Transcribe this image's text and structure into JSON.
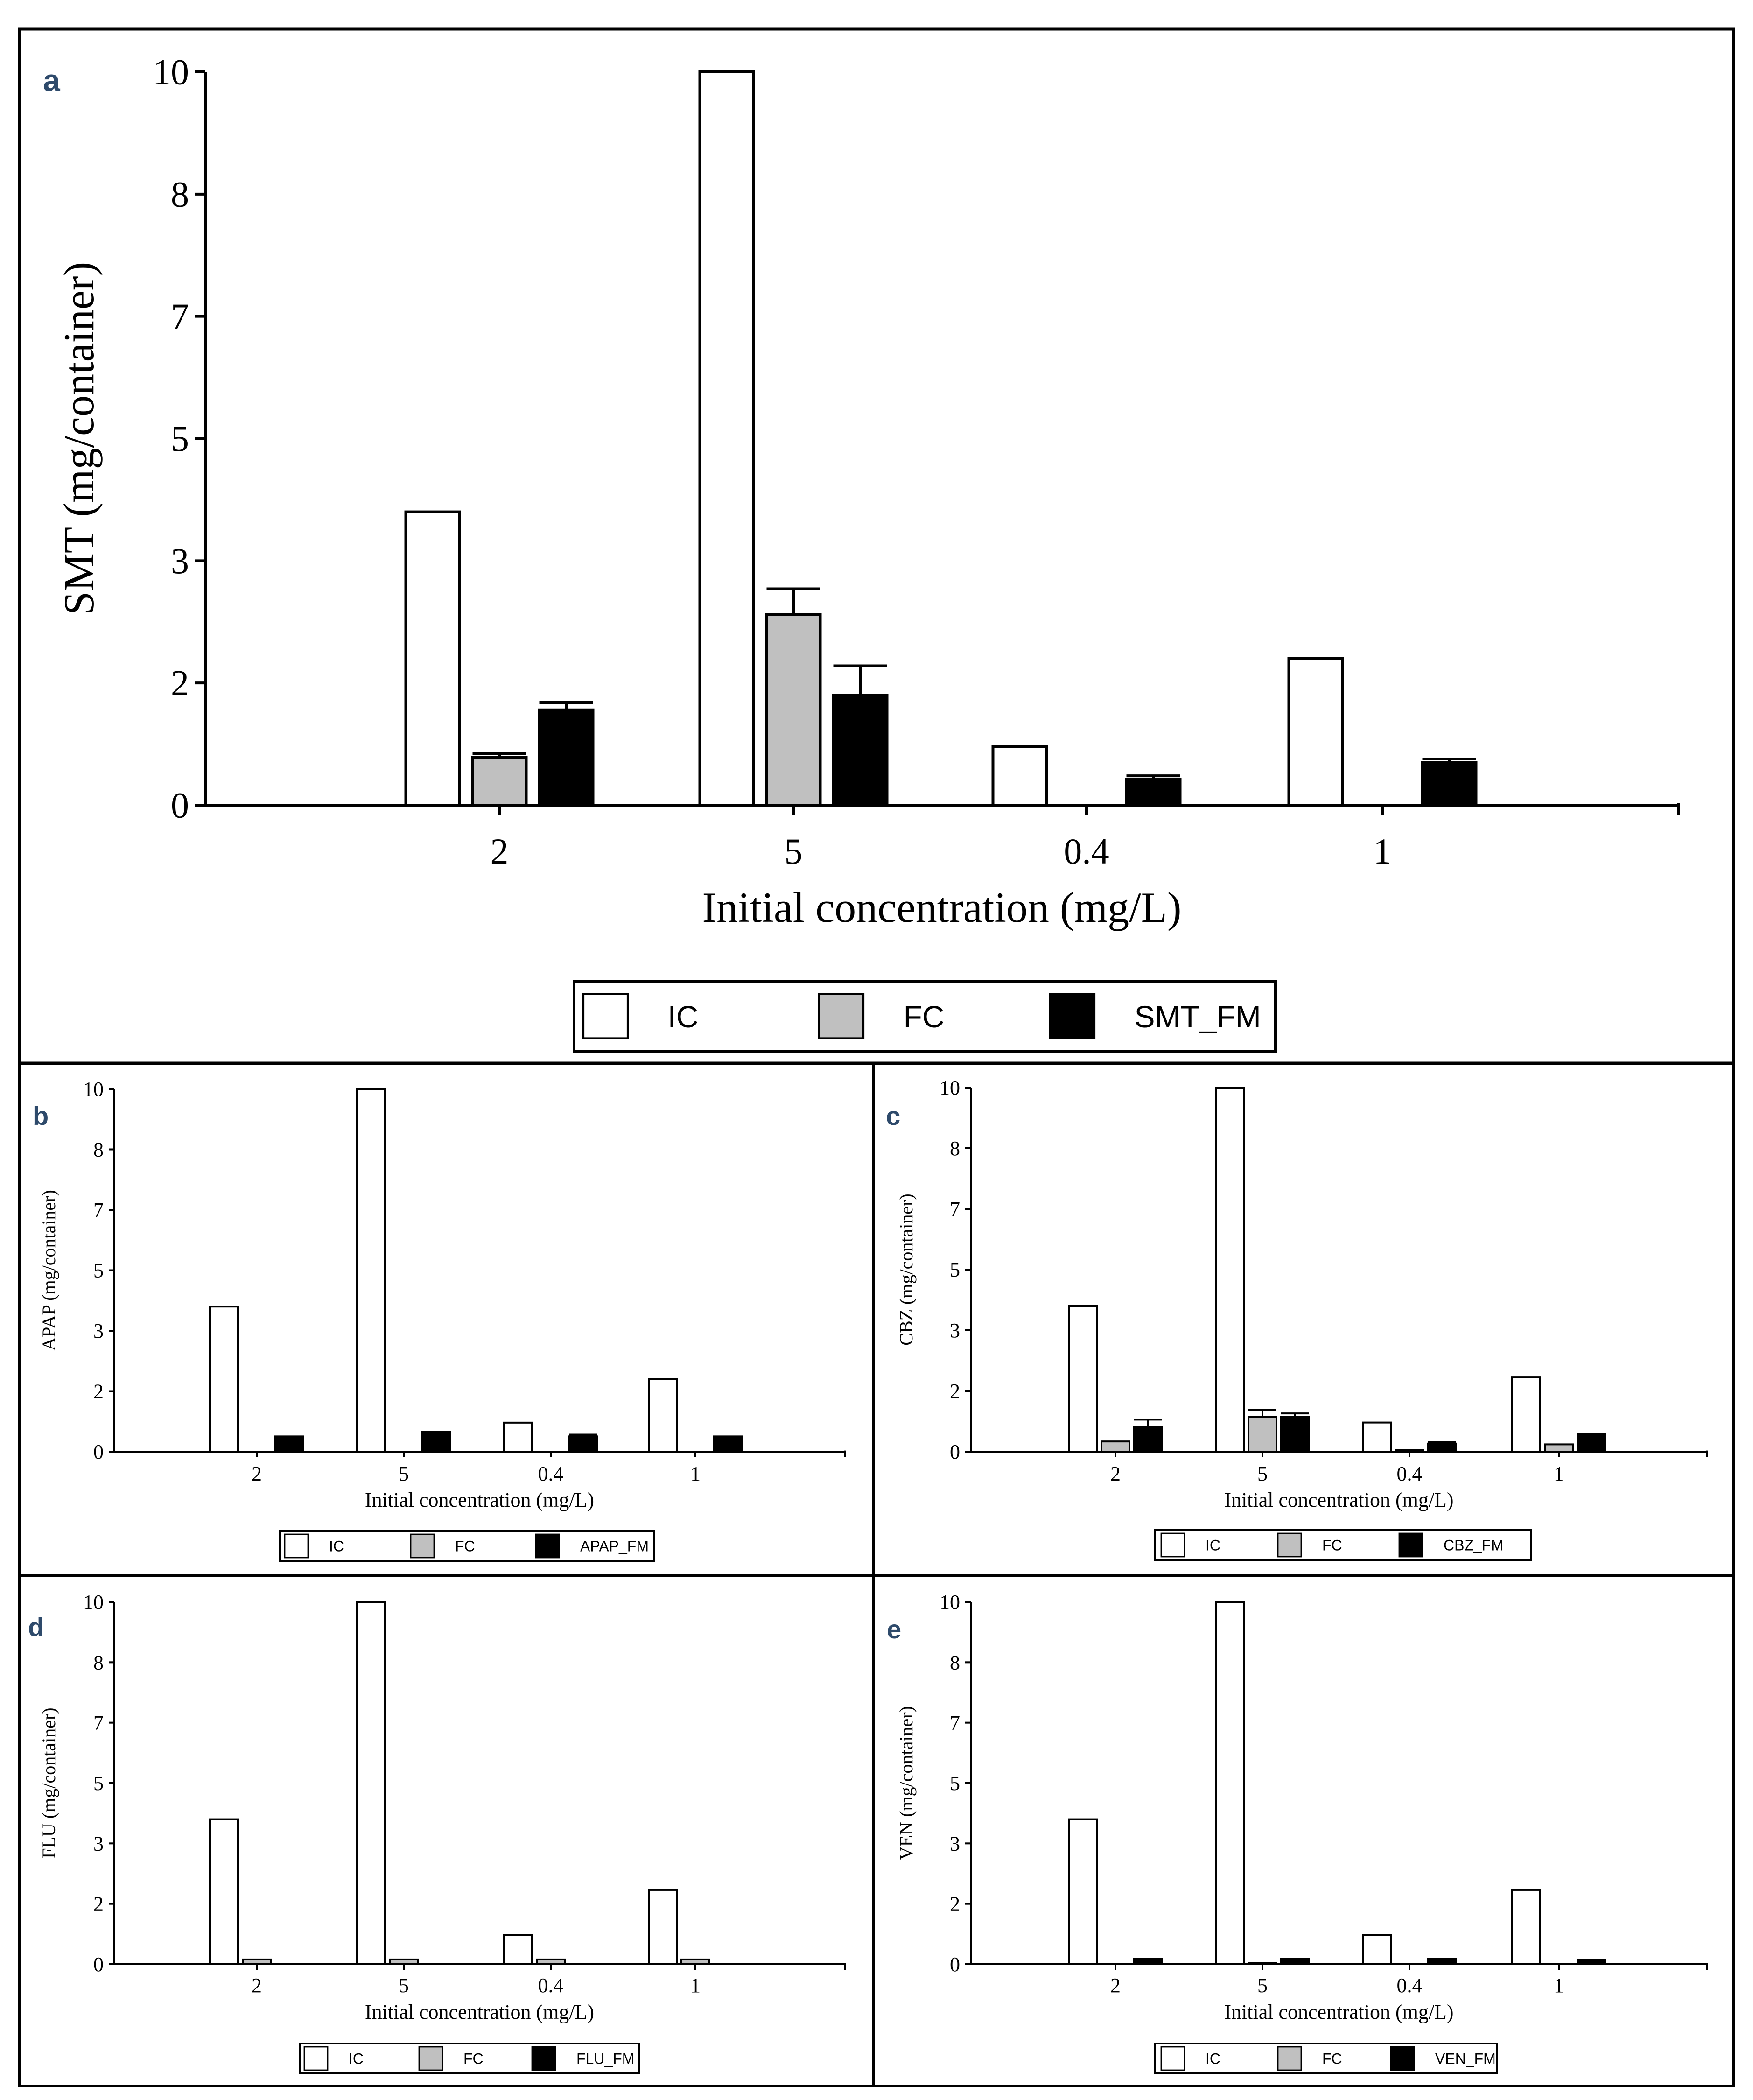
{
  "figure": {
    "colors": {
      "IC": "#ffffff",
      "FC": "#c0c0c0",
      "FM": "#000000",
      "panel_letter": "#2e4a6b"
    }
  },
  "chart_data": [
    {
      "panel": "a",
      "type": "bar",
      "ylabel": "SMT (mg/container)",
      "xlabel": "Initial concentration (mg/L)",
      "categories": [
        "2",
        "5",
        "0.4",
        "1"
      ],
      "yticks": [
        "0",
        "2",
        "3",
        "5",
        "7",
        "8",
        "10"
      ],
      "ylim": [
        0,
        10
      ],
      "legend": [
        "IC",
        "FC",
        "SMT_FM"
      ],
      "series": [
        {
          "name": "IC",
          "values": [
            4.0,
            10.0,
            0.8,
            2.0
          ],
          "errors": [
            0,
            0,
            0,
            0
          ]
        },
        {
          "name": "FC",
          "values": [
            0.65,
            2.6,
            0,
            0
          ],
          "errors": [
            0.05,
            0.35,
            0,
            0
          ]
        },
        {
          "name": "SMT_FM",
          "values": [
            1.3,
            1.5,
            0.35,
            0.58
          ],
          "errors": [
            0.1,
            0.4,
            0.05,
            0.05
          ]
        }
      ]
    },
    {
      "panel": "b",
      "type": "bar",
      "ylabel": "APAP (mg/container)",
      "xlabel": "Initial concentration (mg/L)",
      "categories": [
        "2",
        "5",
        "0.4",
        "1"
      ],
      "yticks": [
        "0",
        "2",
        "3",
        "5",
        "7",
        "8",
        "10"
      ],
      "ylim": [
        0,
        10
      ],
      "legend": [
        "IC",
        "FC",
        "APAP_FM"
      ],
      "series": [
        {
          "name": "IC",
          "values": [
            4.0,
            10.0,
            0.8,
            2.0
          ],
          "errors": [
            0,
            0,
            0,
            0
          ]
        },
        {
          "name": "FC",
          "values": [
            0,
            0,
            0,
            0
          ],
          "errors": [
            0,
            0,
            0,
            0
          ]
        },
        {
          "name": "APAP_FM",
          "values": [
            0.42,
            0.55,
            0.42,
            0.42
          ],
          "errors": [
            0,
            0,
            0.05,
            0
          ]
        }
      ]
    },
    {
      "panel": "c",
      "type": "bar",
      "ylabel": "CBZ (mg/container)",
      "xlabel": "Initial concentration (mg/L)",
      "categories": [
        "2",
        "5",
        "0.4",
        "1"
      ],
      "yticks": [
        "0",
        "2",
        "3",
        "5",
        "7",
        "8",
        "10"
      ],
      "ylim": [
        0,
        10
      ],
      "legend": [
        "IC",
        "FC",
        "CBZ_FM"
      ],
      "series": [
        {
          "name": "IC",
          "values": [
            4.0,
            10.0,
            0.8,
            2.05
          ],
          "errors": [
            0,
            0,
            0,
            0
          ]
        },
        {
          "name": "FC",
          "values": [
            0.28,
            0.95,
            0.05,
            0.2
          ],
          "errors": [
            0,
            0.2,
            0,
            0
          ]
        },
        {
          "name": "CBZ_FM",
          "values": [
            0.68,
            0.95,
            0.22,
            0.5
          ],
          "errors": [
            0.2,
            0.1,
            0.05,
            0
          ]
        }
      ]
    },
    {
      "panel": "d",
      "type": "bar",
      "ylabel": "FLU (mg/container)",
      "xlabel": "Initial concentration (mg/L)",
      "categories": [
        "2",
        "5",
        "0.4",
        "1"
      ],
      "yticks": [
        "0",
        "2",
        "3",
        "5",
        "7",
        "8",
        "10"
      ],
      "ylim": [
        0,
        10
      ],
      "legend": [
        "IC",
        "FC",
        "FLU_FM"
      ],
      "series": [
        {
          "name": "IC",
          "values": [
            4.0,
            10.0,
            0.8,
            2.05
          ],
          "errors": [
            0,
            0,
            0,
            0
          ]
        },
        {
          "name": "FC",
          "values": [
            0.13,
            0.13,
            0.13,
            0.13
          ],
          "errors": [
            0,
            0,
            0,
            0
          ]
        },
        {
          "name": "FLU_FM",
          "values": [
            0,
            0,
            0,
            0
          ],
          "errors": [
            0,
            0,
            0,
            0
          ]
        }
      ]
    },
    {
      "panel": "e",
      "type": "bar",
      "ylabel": "VEN (mg/container)",
      "xlabel": "Initial concentration (mg/L)",
      "categories": [
        "2",
        "5",
        "0.4",
        "1"
      ],
      "yticks": [
        "0",
        "2",
        "3",
        "5",
        "7",
        "8",
        "10"
      ],
      "ylim": [
        0,
        10
      ],
      "legend": [
        "IC",
        "FC",
        "VEN_FM"
      ],
      "series": [
        {
          "name": "IC",
          "values": [
            4.0,
            10.0,
            0.8,
            2.05
          ],
          "errors": [
            0,
            0,
            0,
            0
          ]
        },
        {
          "name": "FC",
          "values": [
            0,
            0.03,
            0,
            0
          ],
          "errors": [
            0,
            0,
            0,
            0
          ]
        },
        {
          "name": "VEN_FM",
          "values": [
            0.15,
            0.15,
            0.15,
            0.12
          ],
          "errors": [
            0,
            0,
            0,
            0
          ]
        }
      ]
    }
  ]
}
